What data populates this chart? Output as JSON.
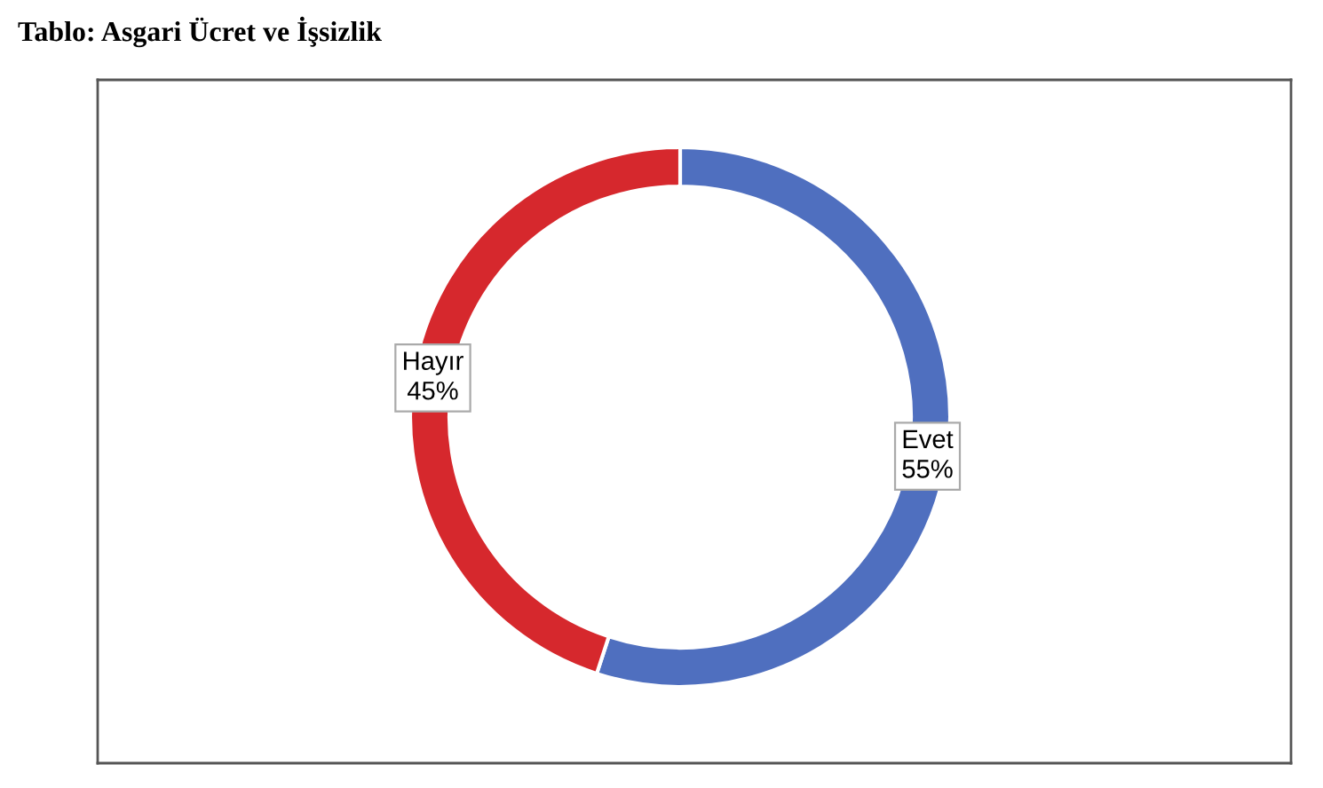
{
  "chart_data": {
    "type": "donut",
    "title": "Tablo: Asgari Ücret ve İşsizlik",
    "categories": [
      "Evet",
      "Hayır"
    ],
    "values": [
      55,
      45
    ],
    "value_labels": [
      "55%",
      "45%"
    ],
    "colors": [
      "#4f6fbf",
      "#d6282d"
    ],
    "legend": false
  }
}
